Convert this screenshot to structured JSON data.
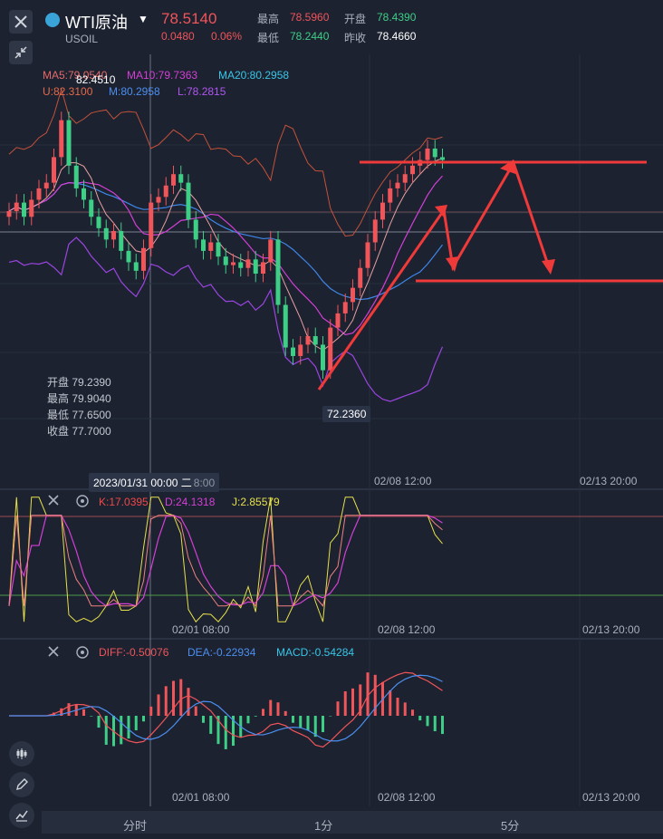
{
  "header": {
    "symbol": "WTI原油",
    "subsymbol": "USOIL",
    "price": "78.5140",
    "change": "0.0480",
    "change_pct": "0.06%",
    "high_label": "最高",
    "high": "78.5960",
    "open_label": "开盘",
    "open": "78.4390",
    "low_label": "最低",
    "low": "78.2440",
    "prev_close_label": "昨收",
    "prev_close": "78.4660"
  },
  "main_legend": {
    "ma5": "MA5:79.0540",
    "ma10": "MA10:79.7363",
    "ma20": "MA20:80.2958",
    "upper": "U:82.3100",
    "mid": "M:80.2958",
    "lower": "L:78.2815"
  },
  "ohlc_panel": {
    "open": "开盘 79.2390",
    "high": "最高 79.9040",
    "low": "最低 77.6500",
    "close": "收盘 77.7000"
  },
  "markers": {
    "high_price": "82.4510",
    "low_price": "72.2360"
  },
  "time_axis": {
    "crosshair": "2023/01/31 00:00 二",
    "crosshair_suffix": "8:00",
    "t2": "02/08 12:00",
    "t3": "02/13 20:00",
    "t1": "02/01 08:00"
  },
  "kdj": {
    "k": "K:17.0395",
    "d": "D:24.1318",
    "j": "J:2.85579"
  },
  "macd": {
    "diff": "DIFF:-0.50076",
    "dea": "DEA:-0.22934",
    "macd": "MACD:-0.54284"
  },
  "tabs": [
    "分时",
    "1分",
    "5分"
  ],
  "colors": {
    "up": "#f0555a",
    "down": "#3ecf86",
    "bg": "#1c2230",
    "annotation": "#f03a3a"
  },
  "chart_data": {
    "type": "candlestick",
    "title": "WTI原油 USOIL",
    "x_ticks": [
      "02/01 08:00",
      "02/08 12:00",
      "02/13 20:00"
    ],
    "series_close": [
      78.6,
      78.9,
      78.4,
      79.0,
      79.4,
      79.6,
      80.5,
      81.8,
      80.2,
      79.4,
      79.0,
      78.4,
      78.0,
      77.6,
      77.9,
      77.2,
      76.8,
      76.5,
      77.3,
      78.9,
      79.1,
      79.5,
      79.9,
      79.6,
      78.3,
      77.6,
      77.2,
      77.5,
      77.0,
      76.7,
      76.8,
      76.6,
      76.9,
      76.4,
      76.8,
      77.6,
      75.3,
      73.8,
      73.5,
      73.9,
      74.2,
      73.9,
      73.0,
      74.5,
      75.0,
      75.4,
      75.9,
      76.6,
      77.5,
      78.3,
      78.9,
      79.4,
      79.6,
      79.9,
      80.2,
      80.4,
      80.8,
      80.5,
      80.4
    ],
    "high_marker": 82.451,
    "low_marker": 72.236,
    "indicators": {
      "MA5": 79.054,
      "MA10": 79.7363,
      "MA20": 80.2958,
      "BOLL_U": 82.31,
      "BOLL_M": 80.2958,
      "BOLL_L": 78.2815,
      "K": 17.0395,
      "D": 24.1318,
      "J": 2.85579,
      "DIFF": -0.50076,
      "DEA": -0.22934,
      "MACD": -0.54284
    }
  }
}
